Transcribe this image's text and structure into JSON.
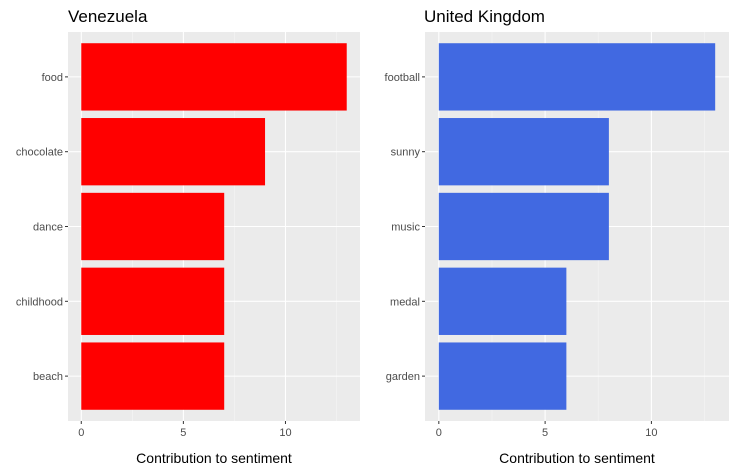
{
  "colors": {
    "panel_background": "#EBEBEB",
    "grid_major": "#FFFFFF",
    "grid_minor": "#F5F5F5",
    "tick": "#333333"
  },
  "chart_data": [
    {
      "type": "bar",
      "orientation": "horizontal",
      "title": "Venezuela",
      "xlabel": "Contribution to sentiment",
      "ylabel": "",
      "categories": [
        "food",
        "chocolate",
        "dance",
        "childhood",
        "beach"
      ],
      "values": [
        13,
        9,
        7,
        7,
        7
      ],
      "xlim": [
        -0.65,
        13.65
      ],
      "xticks": [
        0,
        5,
        10
      ],
      "bar_color": "#FF0000",
      "grid": true,
      "legend": "none"
    },
    {
      "type": "bar",
      "orientation": "horizontal",
      "title": "United Kingdom",
      "xlabel": "Contribution to sentiment",
      "ylabel": "",
      "categories": [
        "football",
        "sunny",
        "music",
        "medal",
        "garden"
      ],
      "values": [
        13,
        8,
        8,
        6,
        6
      ],
      "xlim": [
        -0.65,
        13.65
      ],
      "xticks": [
        0,
        5,
        10
      ],
      "bar_color": "#4169E1",
      "grid": true,
      "legend": "none"
    }
  ]
}
